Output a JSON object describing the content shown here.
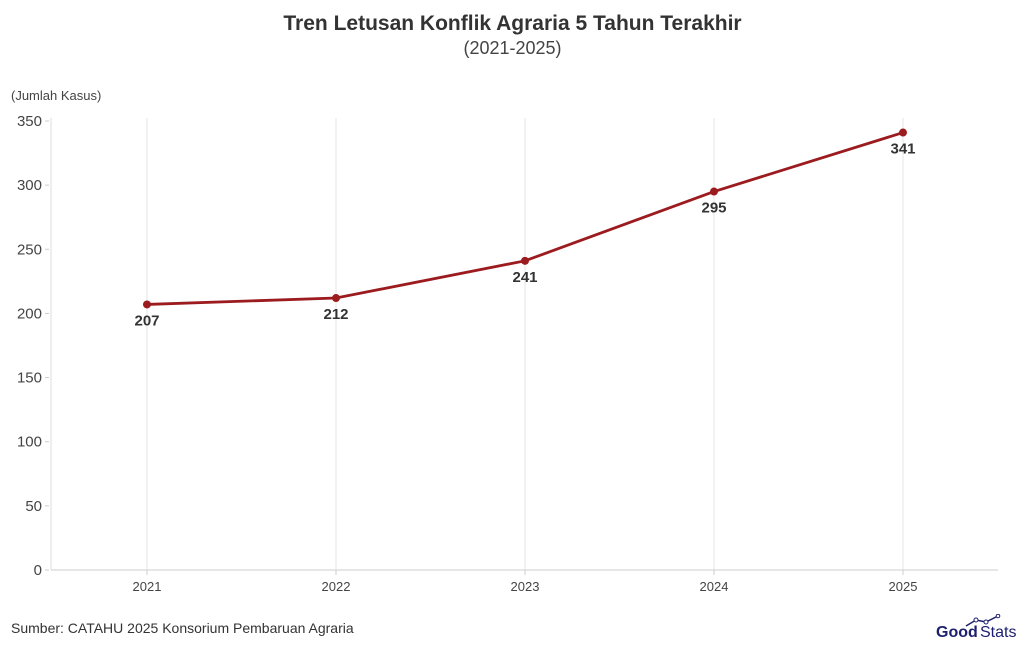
{
  "chart_data": {
    "type": "line",
    "title": "Tren Letusan Konflik Agraria 5 Tahun Terakhir",
    "subtitle": "(2021-2025)",
    "ylabel": "(Jumlah Kasus)",
    "xlabel": "",
    "categories": [
      "2021",
      "2022",
      "2023",
      "2024",
      "2025"
    ],
    "series": [
      {
        "values": [
          207,
          212,
          241,
          295,
          341
        ],
        "color": "#9b1b1f"
      }
    ],
    "ylim": [
      0,
      350
    ],
    "yticks": [
      0,
      50,
      100,
      150,
      200,
      250,
      300,
      350
    ],
    "grid": "vertical",
    "data_labels": true
  },
  "source": "Sumber: CATAHU 2025 Konsorium Pembaruan Agraria",
  "logo": {
    "text_a": "Good",
    "text_b": "Stats",
    "color": "#1b1f6e"
  }
}
